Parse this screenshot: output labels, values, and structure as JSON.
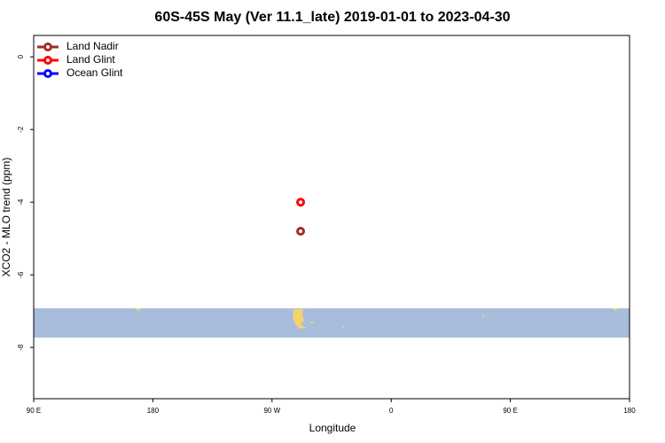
{
  "chart_data": {
    "type": "scatter",
    "title": "60S-45S May (Ver 11.1_late)   2019-01-01 to 2023-04-30",
    "x_label": "Longitude",
    "y_label": "XCO2 - MLO trend (ppm)",
    "xlim": [
      -270,
      180
    ],
    "xticks": [
      {
        "value": -270,
        "label": "90 E"
      },
      {
        "value": -180,
        "label": "180"
      },
      {
        "value": -90,
        "label": "90 W"
      },
      0,
      {
        "value": 90,
        "label": "90 E"
      },
      180
    ],
    "ylim": [
      -9.41,
      0.59
    ],
    "yticks": [
      0,
      -2,
      -4,
      -6,
      -8
    ],
    "legend": "top-left",
    "series": [
      {
        "name": "Land Nadir",
        "color": "#a52a2a",
        "x": [
          -68.4
        ],
        "values": [
          -4.8
        ]
      },
      {
        "name": "Land Glint",
        "color": "#ff0000",
        "x": [
          -68.4
        ],
        "values": [
          -4.0
        ]
      },
      {
        "name": "Ocean Glint",
        "color": "#0000ff",
        "x": [],
        "values": []
      }
    ]
  }
}
